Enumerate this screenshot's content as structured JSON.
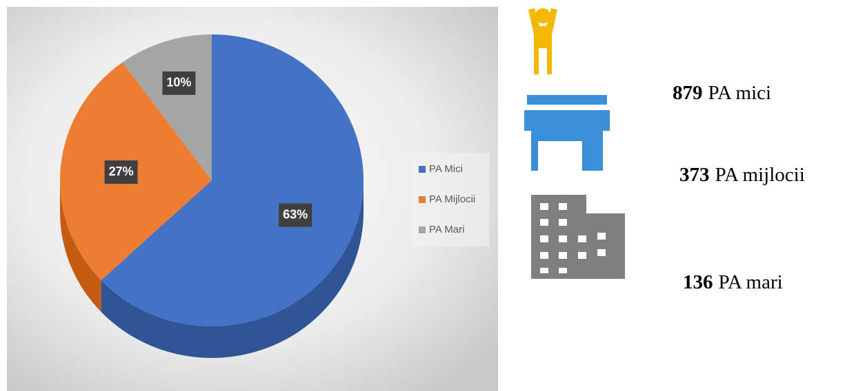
{
  "chart_data": {
    "type": "pie",
    "categories": [
      "PA Mici",
      "PA Mijlocii",
      "PA Mari"
    ],
    "values": [
      63,
      27,
      10
    ],
    "value_labels": [
      "63%",
      "27%",
      "10%"
    ],
    "colors": [
      "#4472c4",
      "#ed7d31",
      "#a5a5a5"
    ],
    "side_colors": [
      "#2f5597",
      "#c55a11",
      "#7f7f7f"
    ],
    "legend": "right"
  },
  "stats": [
    {
      "value": 879,
      "label": "PA mici"
    },
    {
      "value": 373,
      "label": "PA mijlocii"
    },
    {
      "value": 136,
      "label": "PA mari"
    }
  ]
}
